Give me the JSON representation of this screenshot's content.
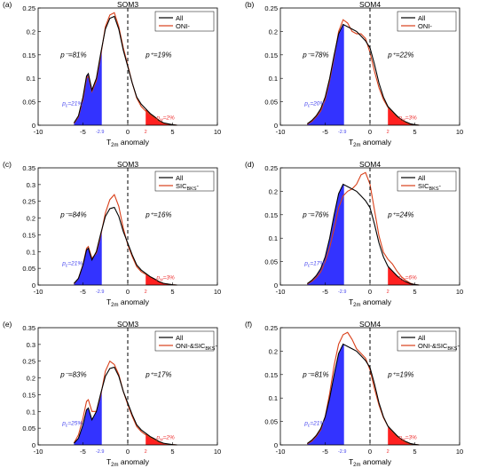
{
  "colors": {
    "all": "#000000",
    "sub": "#d9401a",
    "cold": "#3333ff",
    "warm": "#ff2020",
    "cold_label": "#4444ee",
    "warm_label": "#ee3333"
  },
  "chart_data": [
    {
      "type": "area",
      "panel": "(a)",
      "title": "SOM3",
      "xlabel": "T2m anomaly",
      "ylabel": "",
      "xlim": [
        -10,
        10
      ],
      "ylim": [
        0,
        0.25
      ],
      "yticks": [
        0,
        0.05,
        0.1,
        0.15,
        0.2,
        0.25
      ],
      "xticks": [
        -10,
        -5,
        0,
        5,
        10
      ],
      "legend": [
        "All",
        "ONI-"
      ],
      "p_minus": "p⁻=81%",
      "p_plus": "p⁺=19%",
      "pc_label": "pc=21%",
      "pw_label": "pw=2%",
      "threshold_cold_label": "-2.9",
      "threshold_warm_label": "2",
      "threshold_cold": -2.9,
      "threshold_warm": 2,
      "series": [
        {
          "name": "All",
          "x": [
            -6,
            -5.5,
            -5,
            -4.6,
            -4.4,
            -4,
            -3.5,
            -3,
            -2.5,
            -2,
            -1.5,
            -1,
            -0.5,
            0,
            0.5,
            1,
            1.5,
            2,
            2.5,
            3,
            3.5,
            4,
            4.5,
            5,
            5.5
          ],
          "values": [
            0.005,
            0.02,
            0.06,
            0.105,
            0.11,
            0.075,
            0.1,
            0.155,
            0.205,
            0.228,
            0.232,
            0.205,
            0.16,
            0.125,
            0.09,
            0.06,
            0.045,
            0.035,
            0.025,
            0.018,
            0.01,
            0.005,
            0.003,
            0.001,
            0
          ]
        },
        {
          "name": "ONI-",
          "x": [
            -6,
            -5.5,
            -5,
            -4.6,
            -4.4,
            -4,
            -3.5,
            -3,
            -2.5,
            -2,
            -1.5,
            -1,
            -0.5,
            0,
            0.5,
            1,
            1.5,
            2,
            2.5,
            3,
            3.5,
            4,
            4.5,
            5,
            5.5
          ],
          "values": [
            0.004,
            0.018,
            0.055,
            0.1,
            0.105,
            0.072,
            0.095,
            0.15,
            0.21,
            0.235,
            0.24,
            0.21,
            0.165,
            0.128,
            0.09,
            0.058,
            0.04,
            0.03,
            0.022,
            0.015,
            0.008,
            0.004,
            0.002,
            0.001,
            0
          ]
        }
      ]
    },
    {
      "type": "area",
      "panel": "(b)",
      "title": "SOM4",
      "xlabel": "T2m anomaly",
      "ylabel": "",
      "xlim": [
        -10,
        10
      ],
      "ylim": [
        0,
        0.25
      ],
      "yticks": [
        0,
        0.05,
        0.1,
        0.15,
        0.2,
        0.25
      ],
      "xticks": [
        -10,
        -5,
        0,
        5,
        10
      ],
      "legend": [
        "All",
        "ONI-"
      ],
      "p_minus": "p⁻=78%",
      "p_plus": "p⁺=22%",
      "pc_label": "pc=20%",
      "pw_label": "pw=3%",
      "threshold_cold_label": "-2.9",
      "threshold_warm_label": "2",
      "threshold_cold": -2.9,
      "threshold_warm": 2,
      "series": [
        {
          "name": "All",
          "x": [
            -7,
            -6.5,
            -6,
            -5.5,
            -5,
            -4.5,
            -4,
            -3.5,
            -3,
            -2.5,
            -2,
            -1.5,
            -1,
            -0.5,
            0,
            0.5,
            1,
            1.5,
            2,
            2.5,
            3,
            3.5,
            4,
            4.5,
            5,
            5.5
          ],
          "values": [
            0.003,
            0.01,
            0.02,
            0.035,
            0.06,
            0.1,
            0.15,
            0.195,
            0.215,
            0.21,
            0.205,
            0.2,
            0.19,
            0.18,
            0.165,
            0.13,
            0.09,
            0.06,
            0.04,
            0.03,
            0.02,
            0.012,
            0.007,
            0.003,
            0.001,
            0
          ]
        },
        {
          "name": "ONI-",
          "x": [
            -7,
            -6.5,
            -6,
            -5.5,
            -5,
            -4.5,
            -4,
            -3.5,
            -3,
            -2.5,
            -2,
            -1.5,
            -1,
            -0.5,
            0,
            0.5,
            1,
            1.5,
            2,
            2.5,
            3,
            3.5,
            4,
            4.5,
            5,
            5.5
          ],
          "values": [
            0.002,
            0.008,
            0.018,
            0.03,
            0.055,
            0.095,
            0.145,
            0.2,
            0.225,
            0.218,
            0.2,
            0.195,
            0.195,
            0.185,
            0.155,
            0.115,
            0.08,
            0.055,
            0.038,
            0.028,
            0.018,
            0.01,
            0.005,
            0.002,
            0.001,
            0
          ]
        }
      ]
    },
    {
      "type": "area",
      "panel": "(c)",
      "title": "SOM3",
      "xlabel": "T2m anomaly",
      "ylabel": "",
      "xlim": [
        -10,
        10
      ],
      "ylim": [
        0,
        0.35
      ],
      "yticks": [
        0,
        0.05,
        0.1,
        0.15,
        0.2,
        0.25,
        0.3,
        0.35
      ],
      "xticks": [
        -10,
        -5,
        0,
        5,
        10
      ],
      "legend": [
        "All",
        "SICBKS-"
      ],
      "p_minus": "p⁻=84%",
      "p_plus": "p⁺=16%",
      "pc_label": "pc=21%",
      "pw_label": "pw=3%",
      "threshold_cold_label": "-2.9",
      "threshold_warm_label": "2",
      "threshold_cold": -2.9,
      "threshold_warm": 2,
      "series": [
        {
          "name": "All",
          "x": [
            -6,
            -5.5,
            -5,
            -4.6,
            -4.4,
            -4,
            -3.5,
            -3,
            -2.5,
            -2,
            -1.5,
            -1,
            -0.5,
            0,
            0.5,
            1,
            1.5,
            2,
            2.5,
            3,
            3.5,
            4,
            4.5,
            5,
            5.5
          ],
          "values": [
            0.005,
            0.02,
            0.06,
            0.105,
            0.11,
            0.075,
            0.1,
            0.155,
            0.205,
            0.228,
            0.232,
            0.205,
            0.16,
            0.125,
            0.09,
            0.06,
            0.045,
            0.035,
            0.025,
            0.018,
            0.01,
            0.005,
            0.003,
            0.001,
            0
          ]
        },
        {
          "name": "SICBKS-",
          "x": [
            -6,
            -5.5,
            -5,
            -4.6,
            -4.4,
            -4,
            -3.5,
            -3,
            -2.5,
            -2,
            -1.5,
            -1,
            -0.5,
            0,
            0.5,
            1,
            1.5,
            2,
            2.5,
            3,
            3.5,
            4,
            4.5,
            5,
            5.5
          ],
          "values": [
            0.004,
            0.02,
            0.06,
            0.11,
            0.115,
            0.08,
            0.095,
            0.15,
            0.215,
            0.255,
            0.27,
            0.235,
            0.17,
            0.12,
            0.085,
            0.055,
            0.04,
            0.032,
            0.025,
            0.018,
            0.01,
            0.005,
            0.003,
            0.001,
            0
          ]
        }
      ]
    },
    {
      "type": "area",
      "panel": "(d)",
      "title": "SOM4",
      "xlabel": "T2m anomaly",
      "ylabel": "",
      "xlim": [
        -10,
        10
      ],
      "ylim": [
        0,
        0.25
      ],
      "yticks": [
        0,
        0.05,
        0.1,
        0.15,
        0.2,
        0.25
      ],
      "xticks": [
        -10,
        -5,
        0,
        5,
        10
      ],
      "legend": [
        "All",
        "SICBKS-"
      ],
      "p_minus": "p⁻=76%",
      "p_plus": "p⁺=24%",
      "pc_label": "pc=17%",
      "pw_label": "pw=6%",
      "threshold_cold_label": "-2.9",
      "threshold_warm_label": "2",
      "threshold_cold": -2.9,
      "threshold_warm": 2,
      "series": [
        {
          "name": "All",
          "x": [
            -7,
            -6.5,
            -6,
            -5.5,
            -5,
            -4.5,
            -4,
            -3.5,
            -3,
            -2.5,
            -2,
            -1.5,
            -1,
            -0.5,
            0,
            0.5,
            1,
            1.5,
            2,
            2.5,
            3,
            3.5,
            4,
            4.5,
            5,
            5.5
          ],
          "values": [
            0.003,
            0.01,
            0.02,
            0.035,
            0.06,
            0.1,
            0.15,
            0.195,
            0.215,
            0.21,
            0.205,
            0.2,
            0.19,
            0.18,
            0.165,
            0.13,
            0.09,
            0.06,
            0.04,
            0.03,
            0.02,
            0.012,
            0.007,
            0.003,
            0.001,
            0
          ]
        },
        {
          "name": "SICBKS-",
          "x": [
            -7,
            -6.5,
            -6,
            -5.5,
            -5,
            -4.5,
            -4,
            -3.5,
            -3,
            -2.5,
            -2,
            -1.5,
            -1,
            -0.5,
            0,
            0.5,
            1,
            1.5,
            2,
            2.5,
            3,
            3.5,
            4,
            4.5,
            5,
            5.5
          ],
          "values": [
            0.002,
            0.008,
            0.016,
            0.028,
            0.05,
            0.08,
            0.12,
            0.165,
            0.19,
            0.2,
            0.205,
            0.215,
            0.235,
            0.24,
            0.215,
            0.16,
            0.105,
            0.07,
            0.055,
            0.045,
            0.03,
            0.018,
            0.01,
            0.004,
            0.001,
            0
          ]
        }
      ]
    },
    {
      "type": "area",
      "panel": "(e)",
      "title": "SOM3",
      "xlabel": "T2m anomaly",
      "ylabel": "",
      "xlim": [
        -10,
        10
      ],
      "ylim": [
        0,
        0.35
      ],
      "yticks": [
        0,
        0.05,
        0.1,
        0.15,
        0.2,
        0.25,
        0.3,
        0.35
      ],
      "xticks": [
        -10,
        -5,
        0,
        5,
        10
      ],
      "legend": [
        "All",
        "ONI-&SICBKS-"
      ],
      "p_minus": "p⁻=83%",
      "p_plus": "p⁺=17%",
      "pc_label": "pc=25%",
      "pw_label": "pw=2%",
      "threshold_cold_label": "-2.9",
      "threshold_warm_label": "2",
      "threshold_cold": -2.9,
      "threshold_warm": 2,
      "series": [
        {
          "name": "All",
          "x": [
            -6,
            -5.5,
            -5,
            -4.6,
            -4.4,
            -4,
            -3.5,
            -3,
            -2.5,
            -2,
            -1.5,
            -1,
            -0.5,
            0,
            0.5,
            1,
            1.5,
            2,
            2.5,
            3,
            3.5,
            4,
            4.5,
            5,
            5.5
          ],
          "values": [
            0.005,
            0.02,
            0.06,
            0.105,
            0.11,
            0.075,
            0.1,
            0.155,
            0.205,
            0.228,
            0.232,
            0.205,
            0.16,
            0.125,
            0.09,
            0.06,
            0.045,
            0.035,
            0.025,
            0.018,
            0.01,
            0.005,
            0.003,
            0.001,
            0
          ]
        },
        {
          "name": "ONI-&SICBKS-",
          "x": [
            -6,
            -5.5,
            -5,
            -4.6,
            -4.4,
            -4,
            -3.5,
            -3,
            -2.5,
            -2,
            -1.5,
            -1,
            -0.5,
            0,
            0.5,
            1,
            1.5,
            2,
            2.5,
            3,
            3.5,
            4,
            4.5,
            5,
            5.5
          ],
          "values": [
            0.006,
            0.03,
            0.08,
            0.13,
            0.135,
            0.1,
            0.1,
            0.15,
            0.22,
            0.25,
            0.24,
            0.21,
            0.16,
            0.12,
            0.085,
            0.055,
            0.04,
            0.03,
            0.022,
            0.015,
            0.008,
            0.004,
            0.002,
            0.001,
            0
          ]
        }
      ]
    },
    {
      "type": "area",
      "panel": "(f)",
      "title": "SOM4",
      "xlabel": "T2m anomaly",
      "ylabel": "",
      "xlim": [
        -10,
        10
      ],
      "ylim": [
        0,
        0.25
      ],
      "yticks": [
        0,
        0.05,
        0.1,
        0.15,
        0.2,
        0.25
      ],
      "xticks": [
        -10,
        -5,
        0,
        5,
        10
      ],
      "legend": [
        "All",
        "ONI-&SICBKS-"
      ],
      "p_minus": "p⁻=81%",
      "p_plus": "p⁺=19%",
      "pc_label": "pc=21%",
      "pw_label": "pw=3%",
      "threshold_cold_label": "-2.9",
      "threshold_warm_label": "2",
      "threshold_cold": -2.9,
      "threshold_warm": 2,
      "series": [
        {
          "name": "All",
          "x": [
            -7,
            -6.5,
            -6,
            -5.5,
            -5,
            -4.5,
            -4,
            -3.5,
            -3,
            -2.5,
            -2,
            -1.5,
            -1,
            -0.5,
            0,
            0.5,
            1,
            1.5,
            2,
            2.5,
            3,
            3.5,
            4,
            4.5,
            5,
            5.5
          ],
          "values": [
            0.003,
            0.01,
            0.02,
            0.035,
            0.06,
            0.1,
            0.15,
            0.195,
            0.215,
            0.21,
            0.205,
            0.2,
            0.19,
            0.18,
            0.165,
            0.13,
            0.09,
            0.06,
            0.04,
            0.03,
            0.02,
            0.012,
            0.007,
            0.003,
            0.001,
            0
          ]
        },
        {
          "name": "ONI-&SICBKS-",
          "x": [
            -7,
            -6.5,
            -6,
            -5.5,
            -5,
            -4.5,
            -4,
            -3.5,
            -3,
            -2.5,
            -2,
            -1.5,
            -1,
            -0.5,
            0,
            0.5,
            1,
            1.5,
            2,
            2.5,
            3,
            3.5,
            4,
            4.5,
            5,
            5.5
          ],
          "values": [
            0.002,
            0.008,
            0.018,
            0.032,
            0.06,
            0.11,
            0.17,
            0.215,
            0.235,
            0.24,
            0.225,
            0.205,
            0.195,
            0.185,
            0.16,
            0.12,
            0.085,
            0.058,
            0.04,
            0.028,
            0.018,
            0.01,
            0.005,
            0.002,
            0.001,
            0
          ]
        }
      ]
    }
  ]
}
